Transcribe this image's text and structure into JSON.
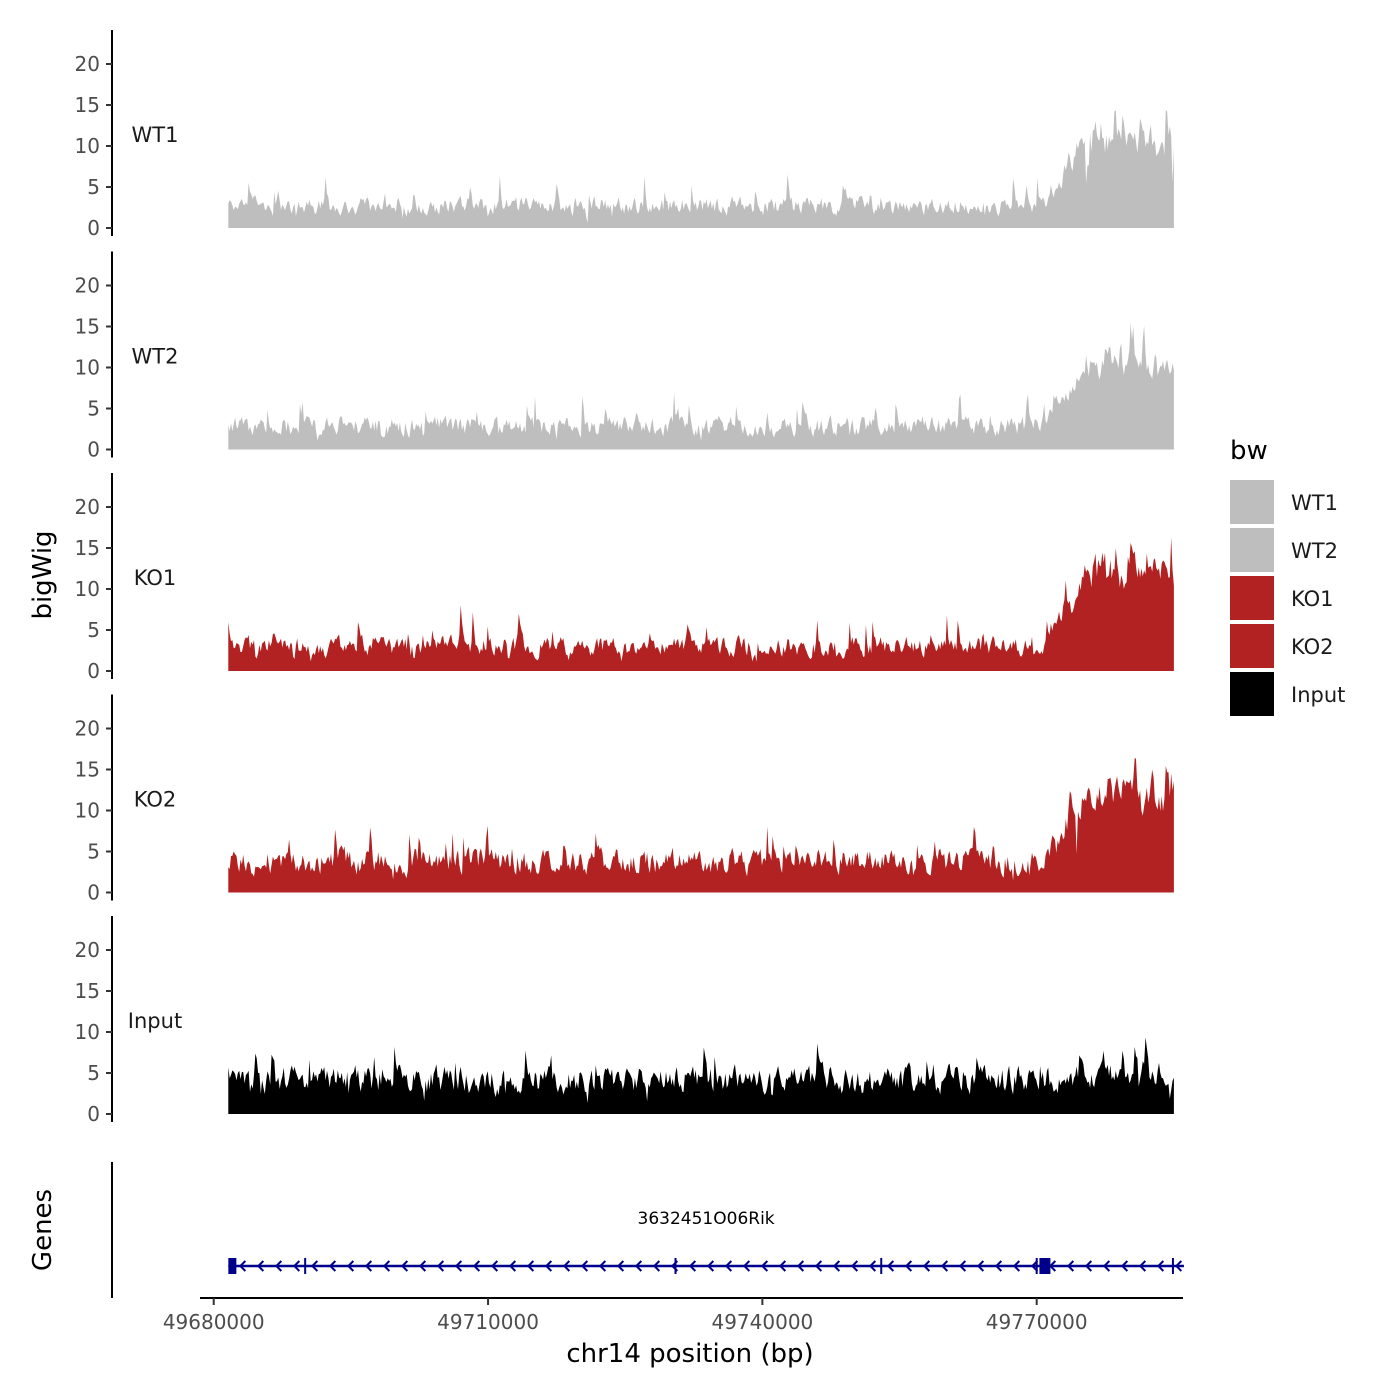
{
  "chart_data": {
    "type": "area",
    "title": "",
    "xlabel": "chr14 position (bp)",
    "ylabel": "bigWig",
    "genes_label": "Genes",
    "xlim": [
      49678500,
      49786000
    ],
    "ylim": [
      0,
      24
    ],
    "x_ticks": [
      {
        "value": 49680000,
        "label": "49680000"
      },
      {
        "value": 49710000,
        "label": "49710000"
      },
      {
        "value": 49740000,
        "label": "49740000"
      },
      {
        "value": 49770000,
        "label": "49770000"
      }
    ],
    "y_ticks": [
      {
        "value": 0,
        "label": "0"
      },
      {
        "value": 5,
        "label": "5"
      },
      {
        "value": 10,
        "label": "10"
      },
      {
        "value": 15,
        "label": "15"
      },
      {
        "value": 20,
        "label": "20"
      }
    ],
    "signal_start": 49681600,
    "signal_end": 49785000,
    "series": [
      {
        "name": "WT1",
        "color": "#bebebe",
        "seed": 11,
        "base": 3.0,
        "late_boost": 9.5,
        "peak_max": 19
      },
      {
        "name": "WT2",
        "color": "#bebebe",
        "seed": 23,
        "base": 3.2,
        "late_boost": 8.5,
        "peak_max": 19
      },
      {
        "name": "KO1",
        "color": "#b22222",
        "seed": 37,
        "base": 3.3,
        "late_boost": 11.0,
        "peak_max": 23
      },
      {
        "name": "KO2",
        "color": "#b22222",
        "seed": 51,
        "base": 4.2,
        "late_boost": 10.0,
        "peak_max": 19
      },
      {
        "name": "Input",
        "color": "#000000",
        "seed": 67,
        "base": 4.6,
        "late_boost": 0.8,
        "peak_max": 16
      }
    ],
    "legend": {
      "title": "bw",
      "position": "right",
      "entries": [
        {
          "label": "WT1",
          "color": "#bebebe"
        },
        {
          "label": "WT2",
          "color": "#bebebe"
        },
        {
          "label": "KO1",
          "color": "#b22222"
        },
        {
          "label": "KO2",
          "color": "#b22222"
        },
        {
          "label": "Input",
          "color": "#000000"
        }
      ]
    },
    "gene": {
      "name": "3632451O06Rik",
      "color": "#00008b",
      "strand": "-",
      "start": 49681600,
      "end": 49786100,
      "exons": [
        {
          "start": 49681600,
          "end": 49682400
        },
        {
          "start": 49770300,
          "end": 49771500
        }
      ],
      "ticks": [
        49690000,
        49730500,
        49753000,
        49770000,
        49784900
      ]
    }
  }
}
